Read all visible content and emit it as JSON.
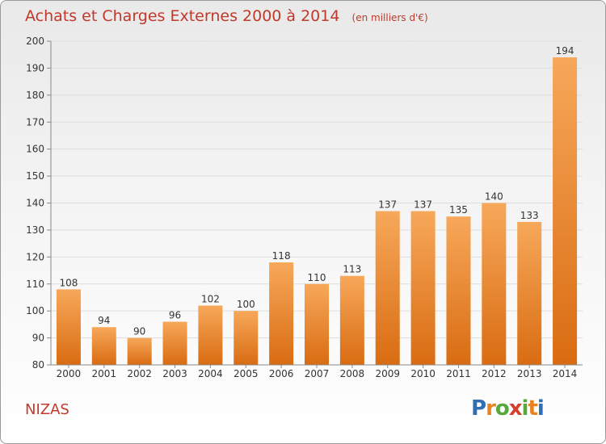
{
  "chart_data": {
    "type": "bar",
    "title": "Achats et Charges Externes 2000 à 2014",
    "subtitle": "(en milliers d'€)",
    "categories": [
      "2000",
      "2001",
      "2002",
      "2003",
      "2004",
      "2005",
      "2006",
      "2007",
      "2008",
      "2009",
      "2010",
      "2011",
      "2012",
      "2013",
      "2014"
    ],
    "values": [
      108,
      94,
      90,
      96,
      102,
      100,
      118,
      110,
      113,
      137,
      137,
      135,
      140,
      133,
      194
    ],
    "ylim": [
      80,
      200
    ],
    "yticks": [
      80,
      90,
      100,
      110,
      120,
      130,
      140,
      150,
      160,
      170,
      180,
      190,
      200
    ],
    "grid": true,
    "bar_color": "#f08a2c",
    "grid_color": "#dddddd"
  },
  "place_label": "NIZAS",
  "logo": {
    "text": "Proxiti",
    "letters": [
      "P",
      "r",
      "o",
      "x",
      "i",
      "t",
      "i"
    ],
    "colors": [
      "#2f6fb3",
      "#e8831f",
      "#58a83c",
      "#d63d2e",
      "#58a83c",
      "#e8831f",
      "#2f6fb3"
    ]
  },
  "title_color": "#c0392b"
}
